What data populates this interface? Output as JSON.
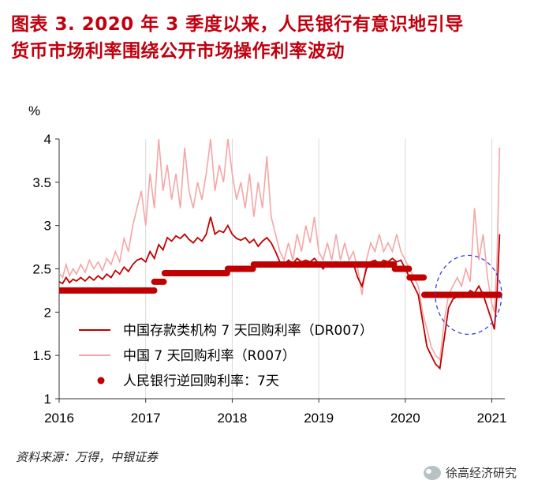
{
  "title": {
    "line1": "图表 3.  2020 年 3 季度以来，人民银行有意识地引导",
    "line2": "货币市场利率围绕公开市场操作利率波动"
  },
  "source": "资料来源：万得，中银证券",
  "watermark": "徐高经济研究",
  "colors": {
    "title": "#c0000f",
    "dr007": "#c00000",
    "r007": "#f4a6a6",
    "omo": "#c00000",
    "highlight": "#3b3bdb"
  },
  "chart_data": {
    "type": "line",
    "ylabel": "%",
    "ylim": [
      1,
      4
    ],
    "yticks": [
      "1",
      "1.5",
      "2",
      "2.5",
      "3",
      "3.5",
      "4"
    ],
    "xlim": [
      2016.0,
      2021.15
    ],
    "xticks": [
      "2016",
      "2017",
      "2018",
      "2019",
      "2020",
      "2021"
    ],
    "grid": "vertical",
    "legend_position": "lower-left",
    "annotation": "dashed-ellipse around 2020 Q3–2021",
    "series": [
      {
        "name": "中国存款类机构 7 天回购利率（DR007）",
        "style": "line",
        "points": [
          [
            2016.0,
            2.35
          ],
          [
            2016.04,
            2.33
          ],
          [
            2016.08,
            2.4
          ],
          [
            2016.12,
            2.34
          ],
          [
            2016.16,
            2.38
          ],
          [
            2016.2,
            2.36
          ],
          [
            2016.25,
            2.4
          ],
          [
            2016.3,
            2.36
          ],
          [
            2016.35,
            2.41
          ],
          [
            2016.4,
            2.37
          ],
          [
            2016.45,
            2.42
          ],
          [
            2016.5,
            2.38
          ],
          [
            2016.55,
            2.44
          ],
          [
            2016.6,
            2.4
          ],
          [
            2016.65,
            2.48
          ],
          [
            2016.7,
            2.44
          ],
          [
            2016.75,
            2.52
          ],
          [
            2016.8,
            2.47
          ],
          [
            2016.85,
            2.55
          ],
          [
            2016.9,
            2.6
          ],
          [
            2016.95,
            2.62
          ],
          [
            2017.0,
            2.58
          ],
          [
            2017.05,
            2.7
          ],
          [
            2017.1,
            2.62
          ],
          [
            2017.15,
            2.78
          ],
          [
            2017.2,
            2.72
          ],
          [
            2017.25,
            2.86
          ],
          [
            2017.3,
            2.82
          ],
          [
            2017.35,
            2.88
          ],
          [
            2017.4,
            2.85
          ],
          [
            2017.45,
            2.9
          ],
          [
            2017.5,
            2.84
          ],
          [
            2017.55,
            2.8
          ],
          [
            2017.6,
            2.86
          ],
          [
            2017.65,
            2.82
          ],
          [
            2017.7,
            2.9
          ],
          [
            2017.75,
            3.1
          ],
          [
            2017.8,
            2.9
          ],
          [
            2017.85,
            2.94
          ],
          [
            2017.9,
            2.92
          ],
          [
            2017.95,
            3.0
          ],
          [
            2018.0,
            2.9
          ],
          [
            2018.05,
            2.85
          ],
          [
            2018.1,
            2.83
          ],
          [
            2018.15,
            2.86
          ],
          [
            2018.2,
            2.8
          ],
          [
            2018.25,
            2.84
          ],
          [
            2018.3,
            2.76
          ],
          [
            2018.35,
            2.82
          ],
          [
            2018.4,
            2.86
          ],
          [
            2018.45,
            2.8
          ],
          [
            2018.5,
            2.7
          ],
          [
            2018.55,
            2.58
          ],
          [
            2018.6,
            2.55
          ],
          [
            2018.65,
            2.6
          ],
          [
            2018.7,
            2.56
          ],
          [
            2018.75,
            2.62
          ],
          [
            2018.8,
            2.58
          ],
          [
            2018.85,
            2.6
          ],
          [
            2018.9,
            2.58
          ],
          [
            2018.95,
            2.62
          ],
          [
            2019.0,
            2.56
          ],
          [
            2019.05,
            2.5
          ],
          [
            2019.1,
            2.56
          ],
          [
            2019.15,
            2.52
          ],
          [
            2019.2,
            2.58
          ],
          [
            2019.25,
            2.55
          ],
          [
            2019.3,
            2.58
          ],
          [
            2019.35,
            2.54
          ],
          [
            2019.4,
            2.56
          ],
          [
            2019.45,
            2.4
          ],
          [
            2019.5,
            2.3
          ],
          [
            2019.55,
            2.5
          ],
          [
            2019.6,
            2.58
          ],
          [
            2019.65,
            2.6
          ],
          [
            2019.7,
            2.56
          ],
          [
            2019.75,
            2.6
          ],
          [
            2019.8,
            2.58
          ],
          [
            2019.85,
            2.62
          ],
          [
            2019.9,
            2.58
          ],
          [
            2019.95,
            2.6
          ],
          [
            2020.0,
            2.5
          ],
          [
            2020.05,
            2.4
          ],
          [
            2020.1,
            2.3
          ],
          [
            2020.15,
            2.2
          ],
          [
            2020.2,
            1.9
          ],
          [
            2020.25,
            1.6
          ],
          [
            2020.3,
            1.5
          ],
          [
            2020.35,
            1.4
          ],
          [
            2020.4,
            1.35
          ],
          [
            2020.45,
            1.7
          ],
          [
            2020.5,
            2.05
          ],
          [
            2020.55,
            2.15
          ],
          [
            2020.6,
            2.18
          ],
          [
            2020.65,
            2.2
          ],
          [
            2020.7,
            2.18
          ],
          [
            2020.75,
            2.25
          ],
          [
            2020.8,
            2.22
          ],
          [
            2020.85,
            2.3
          ],
          [
            2020.9,
            2.2
          ],
          [
            2020.95,
            2.05
          ],
          [
            2021.0,
            1.9
          ],
          [
            2021.03,
            1.8
          ],
          [
            2021.06,
            2.2
          ],
          [
            2021.09,
            2.9
          ]
        ]
      },
      {
        "name": "中国 7 天回购利率（R007）",
        "style": "line",
        "points": [
          [
            2016.0,
            2.45
          ],
          [
            2016.04,
            2.4
          ],
          [
            2016.08,
            2.55
          ],
          [
            2016.12,
            2.42
          ],
          [
            2016.16,
            2.5
          ],
          [
            2016.2,
            2.44
          ],
          [
            2016.25,
            2.55
          ],
          [
            2016.3,
            2.46
          ],
          [
            2016.35,
            2.6
          ],
          [
            2016.4,
            2.5
          ],
          [
            2016.45,
            2.58
          ],
          [
            2016.5,
            2.48
          ],
          [
            2016.55,
            2.62
          ],
          [
            2016.6,
            2.55
          ],
          [
            2016.65,
            2.7
          ],
          [
            2016.7,
            2.58
          ],
          [
            2016.75,
            2.85
          ],
          [
            2016.8,
            2.7
          ],
          [
            2016.85,
            3.0
          ],
          [
            2016.9,
            3.2
          ],
          [
            2016.95,
            3.4
          ],
          [
            2017.0,
            3.0
          ],
          [
            2017.05,
            3.6
          ],
          [
            2017.1,
            3.2
          ],
          [
            2017.15,
            4.0
          ],
          [
            2017.2,
            3.4
          ],
          [
            2017.25,
            3.7
          ],
          [
            2017.3,
            3.3
          ],
          [
            2017.35,
            3.6
          ],
          [
            2017.4,
            3.2
          ],
          [
            2017.45,
            3.9
          ],
          [
            2017.5,
            3.4
          ],
          [
            2017.55,
            3.2
          ],
          [
            2017.6,
            3.5
          ],
          [
            2017.65,
            3.3
          ],
          [
            2017.7,
            3.6
          ],
          [
            2017.75,
            4.0
          ],
          [
            2017.8,
            3.4
          ],
          [
            2017.85,
            3.7
          ],
          [
            2017.9,
            3.5
          ],
          [
            2017.95,
            4.0
          ],
          [
            2018.0,
            3.6
          ],
          [
            2018.05,
            3.3
          ],
          [
            2018.1,
            3.5
          ],
          [
            2018.15,
            3.2
          ],
          [
            2018.2,
            3.6
          ],
          [
            2018.25,
            3.1
          ],
          [
            2018.3,
            3.5
          ],
          [
            2018.35,
            3.2
          ],
          [
            2018.4,
            3.8
          ],
          [
            2018.45,
            3.1
          ],
          [
            2018.5,
            2.9
          ],
          [
            2018.55,
            2.7
          ],
          [
            2018.6,
            2.6
          ],
          [
            2018.65,
            2.8
          ],
          [
            2018.7,
            2.6
          ],
          [
            2018.75,
            2.9
          ],
          [
            2018.8,
            2.7
          ],
          [
            2018.85,
            3.0
          ],
          [
            2018.9,
            2.8
          ],
          [
            2018.95,
            3.1
          ],
          [
            2019.0,
            2.7
          ],
          [
            2019.05,
            2.6
          ],
          [
            2019.1,
            2.8
          ],
          [
            2019.15,
            2.6
          ],
          [
            2019.2,
            2.9
          ],
          [
            2019.25,
            2.6
          ],
          [
            2019.3,
            2.8
          ],
          [
            2019.35,
            2.6
          ],
          [
            2019.4,
            2.7
          ],
          [
            2019.45,
            2.5
          ],
          [
            2019.5,
            2.2
          ],
          [
            2019.55,
            2.6
          ],
          [
            2019.6,
            2.8
          ],
          [
            2019.65,
            2.7
          ],
          [
            2019.7,
            2.9
          ],
          [
            2019.75,
            2.7
          ],
          [
            2019.8,
            2.8
          ],
          [
            2019.85,
            2.7
          ],
          [
            2019.9,
            2.9
          ],
          [
            2019.95,
            2.7
          ],
          [
            2020.0,
            2.6
          ],
          [
            2020.05,
            2.5
          ],
          [
            2020.1,
            2.4
          ],
          [
            2020.15,
            2.3
          ],
          [
            2020.2,
            2.0
          ],
          [
            2020.25,
            1.8
          ],
          [
            2020.3,
            1.6
          ],
          [
            2020.35,
            1.5
          ],
          [
            2020.4,
            1.45
          ],
          [
            2020.45,
            1.9
          ],
          [
            2020.5,
            2.2
          ],
          [
            2020.55,
            2.3
          ],
          [
            2020.6,
            2.4
          ],
          [
            2020.65,
            2.3
          ],
          [
            2020.7,
            2.5
          ],
          [
            2020.75,
            2.35
          ],
          [
            2020.8,
            3.2
          ],
          [
            2020.85,
            2.6
          ],
          [
            2020.9,
            2.9
          ],
          [
            2020.95,
            2.4
          ],
          [
            2021.0,
            2.1
          ],
          [
            2021.03,
            2.0
          ],
          [
            2021.06,
            2.6
          ],
          [
            2021.09,
            3.9
          ]
        ]
      },
      {
        "name": "人民银行逆回购利率：7天",
        "style": "dots",
        "segments": [
          {
            "x0": 2016.0,
            "x1": 2017.1,
            "y": 2.25
          },
          {
            "x0": 2017.1,
            "x1": 2017.22,
            "y": 2.35
          },
          {
            "x0": 2017.22,
            "x1": 2017.95,
            "y": 2.45
          },
          {
            "x0": 2017.95,
            "x1": 2018.25,
            "y": 2.5
          },
          {
            "x0": 2018.25,
            "x1": 2018.95,
            "y": 2.55
          },
          {
            "x0": 2018.95,
            "x1": 2019.88,
            "y": 2.55
          },
          {
            "x0": 2019.88,
            "x1": 2020.05,
            "y": 2.5
          },
          {
            "x0": 2020.05,
            "x1": 2020.22,
            "y": 2.4
          },
          {
            "x0": 2020.22,
            "x1": 2020.42,
            "y": 2.2
          },
          {
            "x0": 2020.42,
            "x1": 2021.1,
            "y": 2.2
          }
        ]
      }
    ]
  }
}
